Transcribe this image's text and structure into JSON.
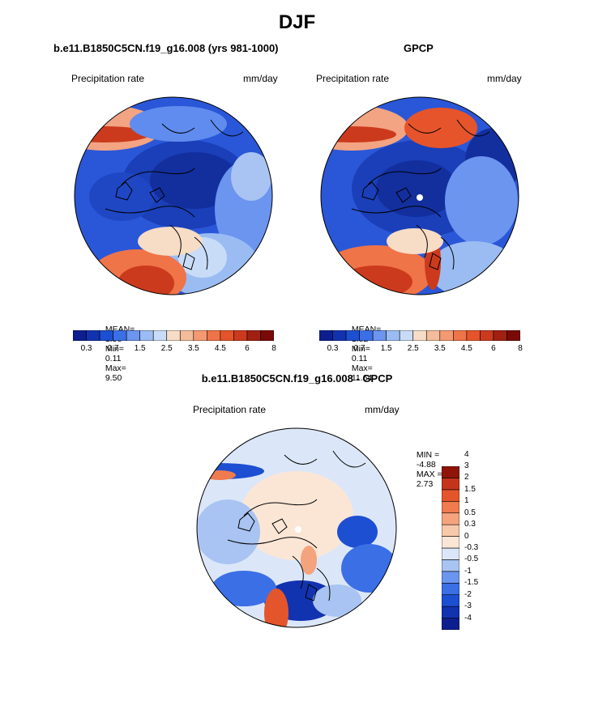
{
  "page": {
    "season": "DJF",
    "model_title": "b.e11.B1850C5CN.f19_g16.008 (yrs 981-1000)",
    "obs_title": "GPCP",
    "diff_title": "b.e11.B1850C5CN.f19_g16.008 - GPCP"
  },
  "panels": {
    "model": {
      "var_label": "Precipitation rate",
      "units": "mm/day",
      "stats": {
        "mean_label": "MEAN=",
        "mean": "1.58",
        "min_label": "Min=",
        "min": "0.11",
        "max_label": "Max=",
        "max": "9.50"
      }
    },
    "obs": {
      "var_label": "Precipitation rate",
      "units": "mm/day",
      "stats": {
        "mean_label": "MEAN=",
        "mean": "1.82",
        "min_label": "Min=",
        "min": "0.11",
        "max_label": "Max=",
        "max": "11.64"
      }
    },
    "diff": {
      "var_label": "Precipitation rate",
      "units": "mm/day",
      "stats": {
        "min_label": "MIN =",
        "min": "-4.88",
        "max_label": "MAX =",
        "max": "2.73"
      }
    }
  },
  "colorbars": {
    "abs": {
      "colors": [
        "#0d1f8f",
        "#1233b0",
        "#1d4fd2",
        "#3a6fe6",
        "#6b95ef",
        "#9bbcf3",
        "#c8dcf7",
        "#f7dcc6",
        "#f4bc9b",
        "#f39a72",
        "#ef7448",
        "#e6542b",
        "#cc3a1d",
        "#a02012",
        "#7a0a05"
      ],
      "ticks": [
        "0.3",
        "0.7",
        "1.5",
        "2.5",
        "3.5",
        "4.5",
        "6",
        "8"
      ]
    },
    "diff": {
      "colors": [
        "#0d1f8f",
        "#1233b0",
        "#1d4fd2",
        "#3a6fe6",
        "#6b95ef",
        "#a9c4f2",
        "#dbe7f8",
        "#fbe6d6",
        "#f7c8aa",
        "#f4a37d",
        "#ef7b4e",
        "#e5552b",
        "#c4341a",
        "#8e1508"
      ],
      "ticks": [
        "-4",
        "-3",
        "-2",
        "-1.5",
        "-1",
        "-0.5",
        "-0.3",
        "0",
        "0.3",
        "0.5",
        "1",
        "1.5",
        "2",
        "3",
        "4"
      ]
    }
  }
}
